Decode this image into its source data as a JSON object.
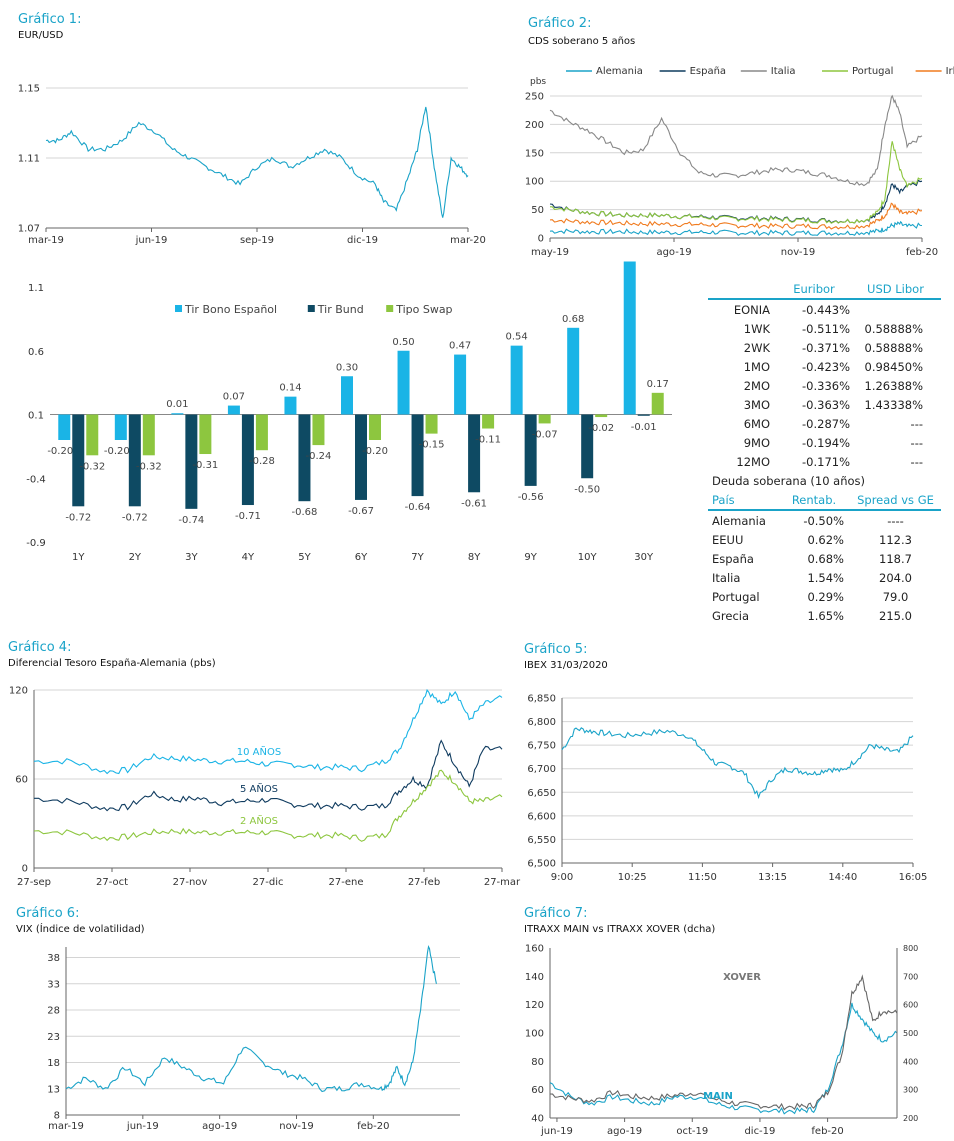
{
  "charts": {
    "g1": {
      "title": "Gráfico 1:",
      "subtitle": "EUR/USD"
    },
    "g2": {
      "title": "Gráfico 2:",
      "subtitle": "CDS soberano 5 años"
    },
    "g4": {
      "title": "Gráfico 4:",
      "subtitle": "Diferencial Tesoro España-Alemania (pbs)"
    },
    "g5": {
      "title": "Gráfico 5:",
      "subtitle": "IBEX  31/03/2020"
    },
    "g6": {
      "title": "Gráfico 6:",
      "subtitle": "VIX (Índice de volatilidad)"
    },
    "g7": {
      "title": "Gráfico 7:",
      "subtitle": "ITRAXX MAIN vs ITRAXX XOVER (dcha)"
    }
  },
  "rates_table": {
    "headers": [
      "",
      "Euribor",
      "USD Libor"
    ],
    "rows": [
      [
        "EONIA",
        "-0.443%",
        ""
      ],
      [
        "1WK",
        "-0.511%",
        "0.58888%"
      ],
      [
        "2WK",
        "-0.371%",
        "0.58888%"
      ],
      [
        "1MO",
        "-0.423%",
        "0.98450%"
      ],
      [
        "2MO",
        "-0.336%",
        "1.26388%"
      ],
      [
        "3MO",
        "-0.363%",
        "1.43338%"
      ],
      [
        "6MO",
        "-0.287%",
        "---"
      ],
      [
        "9MO",
        "-0.194%",
        "---"
      ],
      [
        "12MO",
        "-0.171%",
        "---"
      ]
    ],
    "section_title": "Deuda soberana (10 años)",
    "headers2": [
      "País",
      "Rentab.",
      "Spread vs GE"
    ],
    "rows2": [
      [
        "Alemania",
        "-0.50%",
        "----"
      ],
      [
        "EEUU",
        "0.62%",
        "112.3"
      ],
      [
        "España",
        "0.68%",
        "118.7"
      ],
      [
        "Italia",
        "1.54%",
        "204.0"
      ],
      [
        "Portugal",
        "0.29%",
        "79.0"
      ],
      [
        "Grecia",
        "1.65%",
        "215.0"
      ]
    ]
  },
  "chart_data": [
    {
      "id": "g1",
      "type": "line",
      "title": "Gráfico 1:",
      "subtitle": "EUR/USD",
      "ylim": [
        1.07,
        1.15
      ],
      "yticks": [
        "1.07",
        "1.11",
        "1.15"
      ],
      "xticks": [
        "mar-19",
        "jun-19",
        "sep-19",
        "dic-19",
        "mar-20"
      ],
      "x": [
        0,
        0.03,
        0.06,
        0.1,
        0.14,
        0.18,
        0.22,
        0.26,
        0.3,
        0.34,
        0.38,
        0.42,
        0.46,
        0.5,
        0.54,
        0.58,
        0.62,
        0.66,
        0.7,
        0.74,
        0.78,
        0.8,
        0.83,
        0.86,
        0.88,
        0.9,
        0.92,
        0.94,
        0.96,
        0.98,
        1.0
      ],
      "series": [
        {
          "values": [
            1.12,
            1.12,
            1.125,
            1.115,
            1.115,
            1.12,
            1.13,
            1.125,
            1.115,
            1.11,
            1.105,
            1.1,
            1.095,
            1.105,
            1.11,
            1.105,
            1.11,
            1.115,
            1.11,
            1.1,
            1.095,
            1.085,
            1.08,
            1.1,
            1.115,
            1.14,
            1.105,
            1.075,
            1.11,
            1.105,
            1.1
          ],
          "color": "#1aa3c8"
        }
      ]
    },
    {
      "id": "g2",
      "type": "line",
      "title": "Gráfico 2:",
      "subtitle": "CDS soberano 5 años",
      "ylabel": "pbs",
      "ylim": [
        0,
        250
      ],
      "yticks": [
        "0",
        "50",
        "100",
        "150",
        "200",
        "250"
      ],
      "xticks": [
        "may-19",
        "ago-19",
        "nov-19",
        "feb-20"
      ],
      "x": [
        0,
        0.05,
        0.1,
        0.15,
        0.2,
        0.25,
        0.3,
        0.35,
        0.4,
        0.45,
        0.5,
        0.55,
        0.6,
        0.65,
        0.7,
        0.75,
        0.8,
        0.85,
        0.88,
        0.9,
        0.92,
        0.94,
        0.96,
        1.0
      ],
      "series": [
        {
          "name": "Alemania",
          "color": "#1aa3c8",
          "values": [
            12,
            12,
            11,
            11,
            11,
            10,
            10,
            10,
            10,
            10,
            9,
            9,
            9,
            9,
            9,
            9,
            9,
            10,
            12,
            16,
            22,
            25,
            20,
            22
          ]
        },
        {
          "name": "España",
          "color": "#0f3b5f",
          "values": [
            60,
            50,
            45,
            42,
            40,
            40,
            40,
            38,
            38,
            36,
            35,
            35,
            34,
            33,
            32,
            31,
            30,
            32,
            40,
            60,
            95,
            80,
            90,
            100
          ]
        },
        {
          "name": "Italia",
          "color": "#888888",
          "values": [
            225,
            205,
            190,
            170,
            150,
            155,
            210,
            150,
            115,
            110,
            110,
            115,
            120,
            120,
            115,
            110,
            100,
            95,
            120,
            200,
            250,
            220,
            160,
            180
          ]
        },
        {
          "name": "Portugal",
          "color": "#8dc63f",
          "values": [
            55,
            50,
            45,
            42,
            40,
            40,
            40,
            38,
            37,
            35,
            34,
            34,
            33,
            32,
            31,
            30,
            30,
            32,
            45,
            70,
            170,
            120,
            90,
            105
          ]
        },
        {
          "name": "Irlanda",
          "color": "#f07b1f",
          "values": [
            32,
            30,
            28,
            27,
            26,
            25,
            25,
            24,
            24,
            23,
            22,
            22,
            21,
            21,
            21,
            20,
            20,
            22,
            30,
            40,
            60,
            45,
            42,
            48
          ]
        }
      ]
    },
    {
      "id": "g3",
      "type": "bar",
      "categories": [
        "1Y",
        "2Y",
        "3Y",
        "4Y",
        "5Y",
        "6Y",
        "7Y",
        "8Y",
        "9Y",
        "10Y",
        "30Y"
      ],
      "ylim": [
        -0.9,
        1.1
      ],
      "yticks": [
        "-0.9",
        "-0.4",
        "0.1",
        "0.6",
        "1.1"
      ],
      "series": [
        {
          "name": "Tir Bono Español",
          "color": "#1ab4e6",
          "values": [
            -0.2,
            -0.2,
            0.01,
            0.07,
            0.14,
            0.3,
            0.5,
            0.47,
            0.54,
            0.68,
            1.2
          ],
          "labels": [
            "-0.20",
            "-0.20",
            "0.01",
            "0.07",
            "0.14",
            "0.30",
            "0.50",
            "0.47",
            "0.54",
            "0.68",
            ""
          ]
        },
        {
          "name": "Tir Bund",
          "color": "#0e4a63",
          "values": [
            -0.72,
            -0.72,
            -0.74,
            -0.71,
            -0.68,
            -0.67,
            -0.64,
            -0.61,
            -0.56,
            -0.5,
            -0.01
          ],
          "labels": [
            "-0.72",
            "-0.72",
            "-0.74",
            "-0.71",
            "-0.68",
            "-0.67",
            "-0.64",
            "-0.61",
            "-0.56",
            "-0.50",
            "-0.01"
          ]
        },
        {
          "name": "Tipo Swap",
          "color": "#8dc63f",
          "values": [
            -0.32,
            -0.32,
            -0.31,
            -0.28,
            -0.24,
            -0.2,
            -0.15,
            -0.11,
            -0.07,
            -0.02,
            0.17
          ],
          "labels": [
            "-0.32",
            "-0.32",
            "-0.31",
            "-0.28",
            "-0.24",
            "-0.20",
            "-0.15",
            "-0.11",
            "-0.07",
            "-0.02",
            "0.17"
          ]
        }
      ]
    },
    {
      "id": "g4",
      "type": "line",
      "title": "Gráfico 4:",
      "subtitle": "Diferencial Tesoro España-Alemania (pbs)",
      "ylim": [
        0,
        120
      ],
      "yticks": [
        "0",
        "60",
        "120"
      ],
      "xticks": [
        "27-sep",
        "27-oct",
        "27-nov",
        "27-dic",
        "27-ene",
        "27-feb",
        "27-mar"
      ],
      "x": [
        0,
        0.08,
        0.15,
        0.2,
        0.25,
        0.3,
        0.35,
        0.4,
        0.45,
        0.5,
        0.55,
        0.6,
        0.65,
        0.7,
        0.75,
        0.78,
        0.81,
        0.84,
        0.87,
        0.9,
        0.93,
        0.96,
        1.0
      ],
      "series": [
        {
          "name": "10 AÑOS",
          "color": "#1ab4e6",
          "values": [
            72,
            72,
            65,
            66,
            75,
            74,
            73,
            72,
            72,
            70,
            70,
            68,
            68,
            67,
            72,
            80,
            100,
            120,
            110,
            120,
            100,
            110,
            115
          ]
        },
        {
          "name": "5 AÑOS",
          "color": "#0f3b5f",
          "values": [
            47,
            45,
            40,
            41,
            50,
            46,
            47,
            44,
            45,
            46,
            43,
            42,
            42,
            41,
            42,
            52,
            60,
            55,
            85,
            70,
            55,
            80,
            80
          ]
        },
        {
          "name": "2 AÑOS",
          "color": "#8dc63f",
          "values": [
            25,
            24,
            20,
            21,
            24,
            25,
            24,
            24,
            24,
            24,
            22,
            22,
            22,
            20,
            22,
            35,
            45,
            55,
            65,
            58,
            45,
            45,
            48
          ]
        }
      ]
    },
    {
      "id": "g5",
      "type": "line",
      "title": "Gráfico 5:",
      "subtitle": "IBEX  31/03/2020",
      "ylim": [
        6500,
        6850
      ],
      "yticks": [
        "6,500",
        "6,550",
        "6,600",
        "6,650",
        "6,700",
        "6,750",
        "6,800",
        "6,850"
      ],
      "xticks": [
        "9:00",
        "10:25",
        "11:50",
        "13:15",
        "14:40",
        "16:05"
      ],
      "x": [
        0,
        0.04,
        0.08,
        0.12,
        0.18,
        0.24,
        0.3,
        0.36,
        0.4,
        0.44,
        0.48,
        0.52,
        0.56,
        0.6,
        0.64,
        0.68,
        0.72,
        0.76,
        0.8,
        0.84,
        0.88,
        0.92,
        0.96,
        1.0
      ],
      "series": [
        {
          "values": [
            6740,
            6785,
            6780,
            6775,
            6770,
            6775,
            6780,
            6770,
            6740,
            6710,
            6705,
            6690,
            6640,
            6680,
            6700,
            6695,
            6690,
            6700,
            6695,
            6720,
            6750,
            6740,
            6735,
            6770
          ],
          "color": "#1aa3c8"
        }
      ]
    },
    {
      "id": "g6",
      "type": "line",
      "title": "Gráfico 6:",
      "subtitle": "VIX (Índice de volatilidad)",
      "ylim": [
        8,
        40
      ],
      "yticks": [
        "8",
        "13",
        "18",
        "23",
        "28",
        "33",
        "38"
      ],
      "xticks": [
        "mar-19",
        "jun-19",
        "ago-19",
        "nov-19",
        "feb-20"
      ],
      "x": [
        0,
        0.05,
        0.1,
        0.15,
        0.2,
        0.25,
        0.3,
        0.35,
        0.4,
        0.45,
        0.5,
        0.55,
        0.6,
        0.65,
        0.7,
        0.75,
        0.8,
        0.82,
        0.84,
        0.86,
        0.88,
        0.9,
        0.92,
        0.94
      ],
      "series": [
        {
          "values": [
            13,
            15,
            13,
            17,
            14,
            19,
            17,
            15,
            14,
            21,
            18,
            16,
            15,
            13,
            13,
            14,
            13,
            14,
            17,
            14,
            18,
            28,
            40,
            33
          ],
          "color": "#1aa3c8"
        }
      ]
    },
    {
      "id": "g7",
      "type": "line",
      "title": "Gráfico 7:",
      "subtitle": "ITRAXX MAIN vs ITRAXX XOVER (dcha)",
      "ylim": [
        40,
        160
      ],
      "yticks": [
        "40",
        "60",
        "80",
        "100",
        "120",
        "140",
        "160"
      ],
      "y2lim": [
        200,
        800
      ],
      "y2ticks": [
        "200",
        "300",
        "400",
        "500",
        "600",
        "700",
        "800"
      ],
      "xticks": [
        "jun-19",
        "ago-19",
        "oct-19",
        "dic-19",
        "feb-20"
      ],
      "x": [
        0,
        0.06,
        0.12,
        0.18,
        0.24,
        0.3,
        0.36,
        0.42,
        0.48,
        0.54,
        0.6,
        0.66,
        0.72,
        0.76,
        0.8,
        0.84,
        0.87,
        0.9,
        0.93,
        0.96,
        1.0
      ],
      "series": [
        {
          "name": "MAIN",
          "color": "#1aa3c8",
          "axis": "left",
          "values": [
            65,
            55,
            50,
            55,
            52,
            50,
            55,
            55,
            50,
            47,
            46,
            45,
            45,
            46,
            60,
            90,
            120,
            110,
            100,
            95,
            100
          ]
        },
        {
          "name": "XOVER",
          "color": "#666666",
          "axis": "right",
          "values": [
            285,
            270,
            260,
            290,
            275,
            270,
            280,
            290,
            265,
            250,
            245,
            240,
            240,
            245,
            290,
            420,
            640,
            700,
            540,
            580,
            570
          ]
        }
      ]
    }
  ]
}
